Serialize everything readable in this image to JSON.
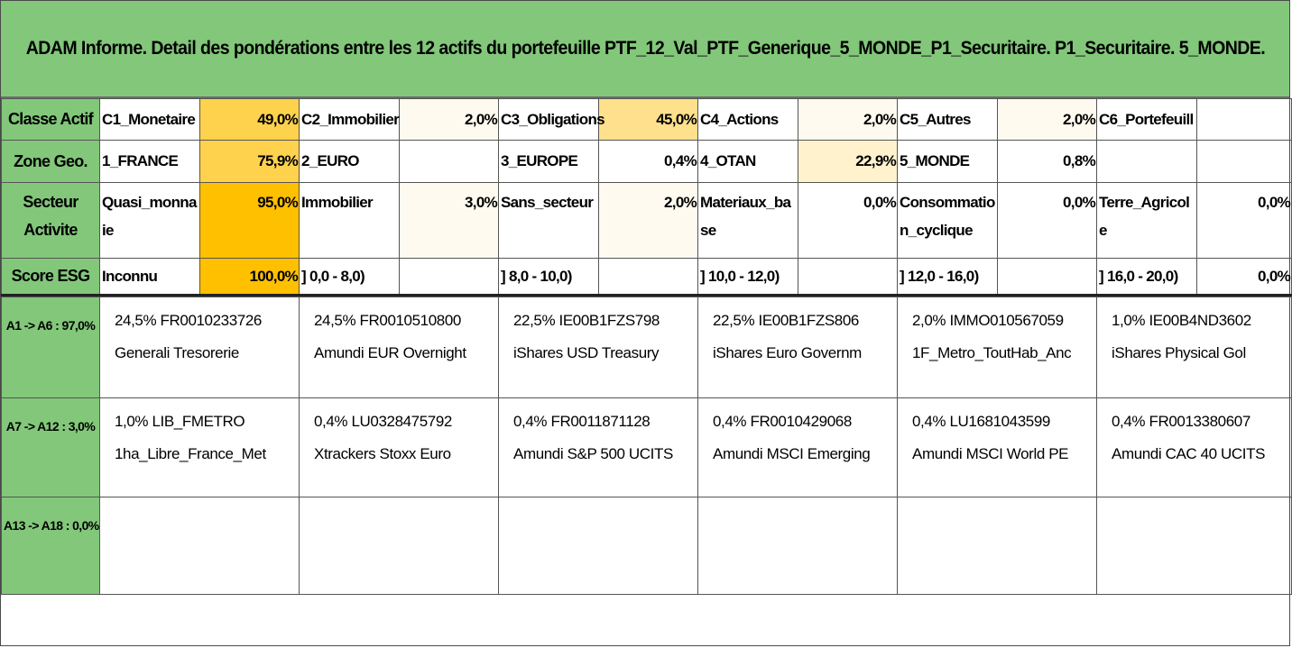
{
  "title": "ADAM Informe. Detail des pondérations entre les 12 actifs du portefeuille PTF_12_Val_PTF_Generique_5_MONDE_P1_Securitaire. P1_Securitaire. 5_MONDE.",
  "colors": {
    "header_green": "#82c77a",
    "heat_strongest": "#ffc000",
    "heat_strong": "#ffd24d",
    "heat_medium": "#ffe08c",
    "heat_light": "#fff2cc",
    "heat_faint": "#fffaf0"
  },
  "summary": {
    "classe_actif": {
      "header": "Classe Actif",
      "cells": [
        {
          "label": "C1_Monetaire",
          "value": "49,0%",
          "heat": "heat_strong"
        },
        {
          "label": "C2_Immobilier",
          "value": "2,0%",
          "heat": "heat_faint"
        },
        {
          "label": "C3_Obligations",
          "value": "45,0%",
          "heat": "heat_medium"
        },
        {
          "label": "C4_Actions",
          "value": "2,0%",
          "heat": "heat_faint"
        },
        {
          "label": "C5_Autres",
          "value": "2,0%",
          "heat": "heat_faint"
        },
        {
          "label": "C6_Portefeuill",
          "value": "",
          "heat": ""
        }
      ]
    },
    "zone_geo": {
      "header": "Zone Geo.",
      "cells": [
        {
          "label": "1_FRANCE",
          "value": "75,9%",
          "heat": "heat_strong"
        },
        {
          "label": "2_EURO",
          "value": "",
          "heat": ""
        },
        {
          "label": "3_EUROPE",
          "value": "0,4%",
          "heat": ""
        },
        {
          "label": "4_OTAN",
          "value": "22,9%",
          "heat": "heat_light"
        },
        {
          "label": "5_MONDE",
          "value": "0,8%",
          "heat": ""
        },
        {
          "label": "",
          "value": "",
          "heat": ""
        }
      ]
    },
    "secteur_activite": {
      "header": "Secteur Activite",
      "cells": [
        {
          "label": "Quasi_monnaie",
          "value": "95,0%",
          "heat": "heat_strongest"
        },
        {
          "label": "Immobilier",
          "value": "3,0%",
          "heat": "heat_faint"
        },
        {
          "label": "Sans_secteur",
          "value": "2,0%",
          "heat": "heat_faint"
        },
        {
          "label": "Materiaux_base",
          "value": "0,0%",
          "heat": ""
        },
        {
          "label": "Consommation_cyclique",
          "value": "0,0%",
          "heat": ""
        },
        {
          "label": "Terre_Agricole",
          "value": "0,0%",
          "heat": ""
        }
      ]
    },
    "score_esg": {
      "header": "Score ESG",
      "cells": [
        {
          "label": "Inconnu",
          "value": "100,0%",
          "heat": "heat_strongest"
        },
        {
          "label": "] 0,0 - 8,0)",
          "value": "",
          "heat": ""
        },
        {
          "label": "] 8,0 - 10,0)",
          "value": "",
          "heat": ""
        },
        {
          "label": "] 10,0 - 12,0)",
          "value": "",
          "heat": ""
        },
        {
          "label": "] 12,0 - 16,0)",
          "value": "",
          "heat": ""
        },
        {
          "label": "] 16,0 - 20,0)",
          "value": "0,0%",
          "heat": ""
        }
      ]
    }
  },
  "assets": {
    "rows": [
      {
        "header": "A1 -> A6 : 97,0%",
        "items": [
          {
            "line1": "24,5% FR0010233726",
            "line2": "Generali Tresorerie"
          },
          {
            "line1": "24,5% FR0010510800",
            "line2": "Amundi EUR Overnight"
          },
          {
            "line1": "22,5% IE00B1FZS798",
            "line2": "iShares USD Treasury"
          },
          {
            "line1": "22,5% IE00B1FZS806",
            "line2": "iShares Euro Governm"
          },
          {
            "line1": "2,0% IMMO010567059",
            "line2": "1F_Metro_ToutHab_Anc"
          },
          {
            "line1": "1,0% IE00B4ND3602",
            "line2": "iShares Physical Gol"
          }
        ]
      },
      {
        "header": "A7 -> A12 : 3,0%",
        "items": [
          {
            "line1": "1,0% LIB_FMETRO",
            "line2": "1ha_Libre_France_Met"
          },
          {
            "line1": "0,4% LU0328475792",
            "line2": "Xtrackers Stoxx Euro"
          },
          {
            "line1": "0,4% FR0011871128",
            "line2": "Amundi S&P 500 UCITS"
          },
          {
            "line1": "0,4% FR0010429068",
            "line2": "Amundi MSCI Emerging"
          },
          {
            "line1": "0,4% LU1681043599",
            "line2": "Amundi MSCI World PE"
          },
          {
            "line1": "0,4% FR0013380607",
            "line2": "Amundi CAC 40 UCITS"
          }
        ]
      },
      {
        "header": "A13 -> A18 : 0,0%",
        "items": [
          {
            "line1": "",
            "line2": ""
          },
          {
            "line1": "",
            "line2": ""
          },
          {
            "line1": "",
            "line2": ""
          },
          {
            "line1": "",
            "line2": ""
          },
          {
            "line1": "",
            "line2": ""
          },
          {
            "line1": "",
            "line2": ""
          }
        ]
      }
    ]
  }
}
